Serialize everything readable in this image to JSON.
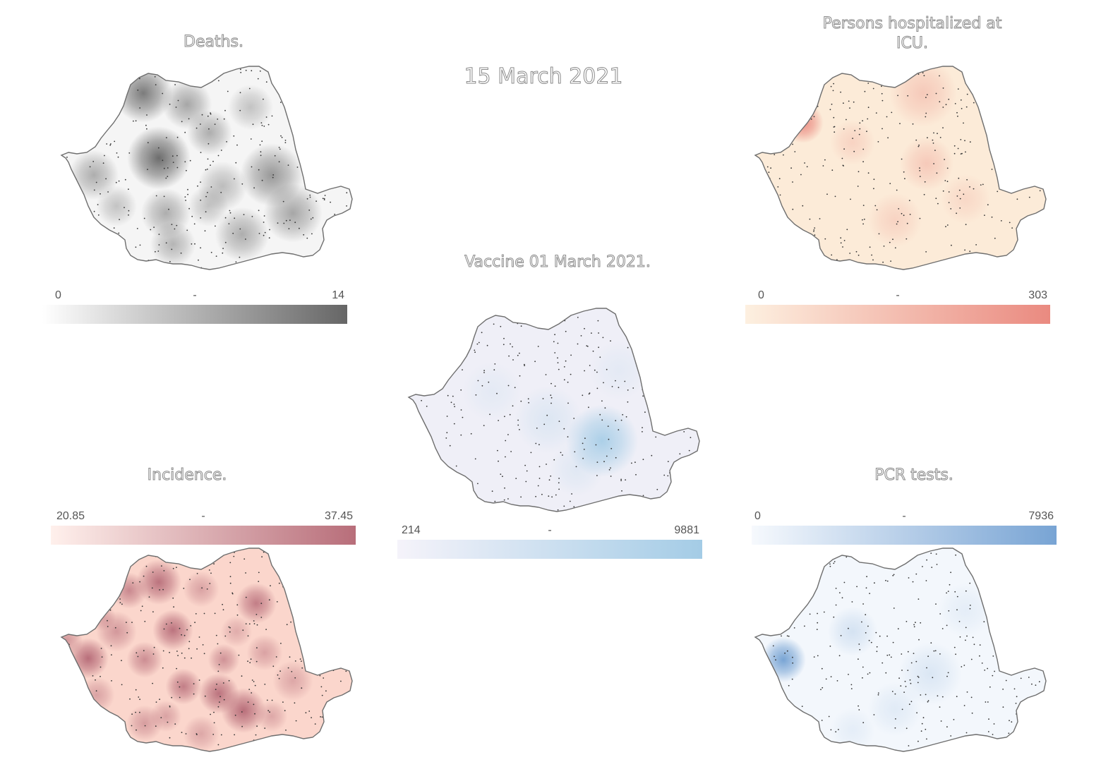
{
  "main_title": "15 March 2021",
  "panels": {
    "deaths": {
      "title": "Deaths.",
      "legend": {
        "min": "0",
        "sep": "-",
        "max": "14"
      },
      "colors": {
        "low": "#ffffff",
        "high": "#666666",
        "base": "#f5f5f5"
      }
    },
    "icu": {
      "title": "Persons hospitalized at ICU.",
      "legend": {
        "min": "0",
        "sep": "-",
        "max": "303"
      },
      "colors": {
        "low": "#fdf0e0",
        "high": "#ea8a80",
        "base": "#fcebd8"
      }
    },
    "vaccine": {
      "title": "Vaccine 01 March 2021.",
      "legend": {
        "min": "214",
        "sep": "-",
        "max": "9881"
      },
      "colors": {
        "low": "#f5f3fa",
        "high": "#a4cce6",
        "base": "#efeff7"
      }
    },
    "incidence": {
      "title": "Incidence.",
      "legend": {
        "min": "20.85",
        "sep": "-",
        "max": "37.45"
      },
      "colors": {
        "low": "#fff0ec",
        "high": "#b86e7a",
        "base": "#fbd6cc"
      }
    },
    "pcr": {
      "title": "PCR tests.",
      "legend": {
        "min": "0",
        "sep": "-",
        "max": "7936"
      },
      "colors": {
        "low": "#f6f9fd",
        "high": "#78a4d4",
        "base": "#f3f7fc"
      }
    }
  }
}
